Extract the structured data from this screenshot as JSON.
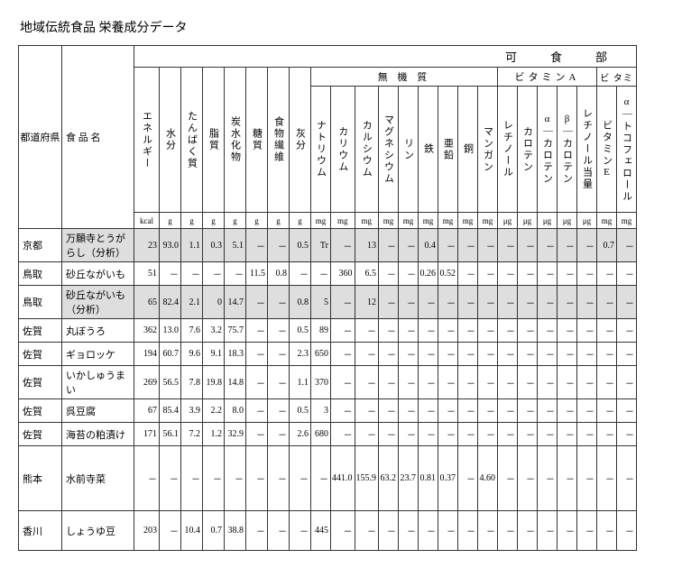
{
  "title": "地域伝統食品 栄養成分データ",
  "section_header": "可　食　部",
  "header_group_mineral": "無 機 質",
  "header_group_vitA": "ビタミンA",
  "header_group_vitE": "ビ タミ",
  "col_labels": {
    "prefecture": "都道府県",
    "food": "食 品 名",
    "energy": "エネルギー",
    "water": "水分",
    "protein": "たんぱく質",
    "fat": "脂質",
    "carb": "炭水化物",
    "sugar": "糖質",
    "fiber": "食物繊維",
    "ash": "灰分",
    "na": "ナトリウム",
    "k": "カリウム",
    "ca": "カルシウム",
    "mg": "マグネシウム",
    "p": "リン",
    "fe": "鉄",
    "zn": "亜鉛",
    "cu": "銅",
    "mn": "マンガン",
    "retinol": "レチノール",
    "carotene": "カロテン",
    "alpha_c": "α｜カロテン",
    "beta_c": "β｜カロテン",
    "retinol_eq": "レチノール当量",
    "vitE": "ビタミンE",
    "alpha_toco": "α｜トコフェロール"
  },
  "units": [
    "kcal",
    "g",
    "g",
    "g",
    "g",
    "g",
    "g",
    "g",
    "mg",
    "mg",
    "mg",
    "mg",
    "mg",
    "mg",
    "mg",
    "mg",
    "mg",
    "μg",
    "μg",
    "μg",
    "μg",
    "μg",
    "mg",
    "mg"
  ],
  "rows": [
    {
      "pref": "京都",
      "food": "万願寺とうがらし（分析）",
      "shaded": true,
      "vals": [
        "23",
        "93.0",
        "1.1",
        "0.3",
        "5.1",
        "－",
        "－",
        "0.5",
        "Tr",
        "－",
        "13",
        "－",
        "－",
        "0.4",
        "－",
        "－",
        "－",
        "－",
        "－",
        "－",
        "－",
        "－",
        "0.7",
        "－"
      ]
    },
    {
      "pref": "鳥取",
      "food": "砂丘ながいも",
      "shaded": false,
      "vals": [
        "51",
        "－",
        "－",
        "－",
        "－",
        "11.5",
        "0.8",
        "－",
        "－",
        "360",
        "6.5",
        "－",
        "－",
        "0.26",
        "0.52",
        "－",
        "－",
        "－",
        "－",
        "－",
        "－",
        "－",
        "－",
        "－"
      ]
    },
    {
      "pref": "鳥取",
      "food": "砂丘ながいも（分析）",
      "shaded": true,
      "vals": [
        "65",
        "82.4",
        "2.1",
        "0",
        "14.7",
        "－",
        "－",
        "0.8",
        "5",
        "－",
        "12",
        "－",
        "－",
        "－",
        "－",
        "－",
        "－",
        "－",
        "－",
        "－",
        "－",
        "－",
        "－",
        "－"
      ]
    },
    {
      "pref": "佐賀",
      "food": "丸ぼうろ",
      "shaded": false,
      "vals": [
        "362",
        "13.0",
        "7.6",
        "3.2",
        "75.7",
        "－",
        "－",
        "0.5",
        "89",
        "－",
        "－",
        "－",
        "－",
        "－",
        "－",
        "－",
        "－",
        "－",
        "－",
        "－",
        "－",
        "－",
        "－",
        "－"
      ]
    },
    {
      "pref": "佐賀",
      "food": "ギョロッケ",
      "shaded": false,
      "vals": [
        "194",
        "60.7",
        "9.6",
        "9.1",
        "18.3",
        "－",
        "－",
        "2.3",
        "650",
        "－",
        "－",
        "－",
        "－",
        "－",
        "－",
        "－",
        "－",
        "－",
        "－",
        "－",
        "－",
        "－",
        "－",
        "－"
      ]
    },
    {
      "pref": "佐賀",
      "food": "いかしゅうまい",
      "shaded": false,
      "vals": [
        "269",
        "56.5",
        "7.8",
        "19.8",
        "14.8",
        "－",
        "－",
        "1.1",
        "370",
        "－",
        "－",
        "－",
        "－",
        "－",
        "－",
        "－",
        "－",
        "－",
        "－",
        "－",
        "－",
        "－",
        "－",
        "－"
      ]
    },
    {
      "pref": "佐賀",
      "food": "呉豆腐",
      "shaded": false,
      "vals": [
        "67",
        "85.4",
        "3.9",
        "2.2",
        "8.0",
        "－",
        "－",
        "0.5",
        "3",
        "－",
        "－",
        "－",
        "－",
        "－",
        "－",
        "－",
        "－",
        "－",
        "－",
        "－",
        "－",
        "－",
        "－",
        "－"
      ]
    },
    {
      "pref": "佐賀",
      "food": "海苔の粕漬け",
      "shaded": false,
      "vals": [
        "171",
        "56.1",
        "7.2",
        "1.2",
        "32.9",
        "－",
        "－",
        "2.6",
        "680",
        "－",
        "－",
        "－",
        "－",
        "－",
        "－",
        "－",
        "－",
        "－",
        "－",
        "－",
        "－",
        "－",
        "－",
        "－"
      ]
    },
    {
      "pref": "熊本",
      "food": "水前寺菜",
      "shaded": false,
      "tall": true,
      "vals": [
        "－",
        "－",
        "－",
        "－",
        "－",
        "－",
        "－",
        "－",
        "－",
        "441.0",
        "155.9",
        "63.2",
        "23.7",
        "0.81",
        "0.37",
        "－",
        "4.60",
        "－",
        "－",
        "－",
        "－",
        "－",
        "－",
        "－"
      ]
    },
    {
      "pref": "香川",
      "food": "しょうゆ豆",
      "shaded": false,
      "mid": true,
      "vals": [
        "203",
        "－",
        "10.4",
        "0.7",
        "38.8",
        "－",
        "－",
        "－",
        "445",
        "－",
        "－",
        "－",
        "－",
        "－",
        "－",
        "－",
        "－",
        "－",
        "－",
        "－",
        "－",
        "－",
        "－",
        "－"
      ]
    }
  ]
}
